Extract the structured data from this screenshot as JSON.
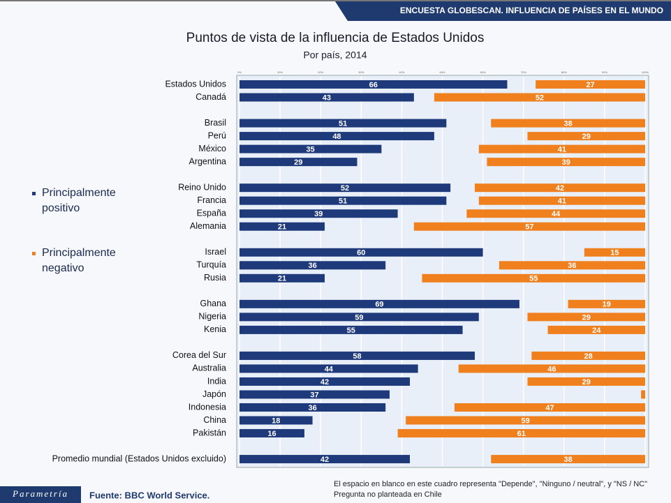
{
  "header": "ENCUESTA GLOBESCAN. INFLUENCIA DE PAÍSES EN EL MUNDO",
  "logo": "Parametría",
  "source": "Fuente: BBC World Service.",
  "notes": [
    "El espacio en blanco en este cuadro representa \"Depende\", \"Ninguno / neutral\", y \"NS / NC\"",
    "Pregunta no planteada en Chile"
  ],
  "chart_data": {
    "type": "diverging-bar",
    "title": "Puntos de vista de la influencia de Estados Unidos",
    "subtitle": "Por país, 2014",
    "categories": [
      "Estados Unidos",
      "Canadá",
      null,
      "Brasil",
      "Perú",
      "México",
      "Argentina",
      null,
      "Reino Unido",
      "Francia",
      "España",
      "Alemania",
      null,
      "Israel",
      "Turquía",
      "Rusia",
      null,
      "Ghana",
      "Nigeria",
      "Kenia",
      null,
      "Corea del Sur",
      "Australia",
      "India",
      "Japón",
      "Indonesia",
      "China",
      "Pakistán",
      null,
      "Promedio mundial (Estados Unidos excluido)"
    ],
    "series": [
      {
        "name": "Principalmente positivo",
        "color": "#1f3a7a",
        "side": "left",
        "values": [
          66,
          43,
          null,
          51,
          48,
          35,
          29,
          null,
          52,
          51,
          39,
          21,
          null,
          60,
          36,
          21,
          null,
          69,
          59,
          55,
          null,
          58,
          44,
          42,
          37,
          36,
          18,
          16,
          null,
          42
        ]
      },
      {
        "name": "Principalmente negativo",
        "color": "#f07f1e",
        "side": "right",
        "values": [
          27,
          52,
          null,
          38,
          29,
          41,
          39,
          null,
          42,
          41,
          44,
          57,
          null,
          15,
          36,
          55,
          null,
          19,
          29,
          24,
          null,
          28,
          46,
          29,
          1,
          47,
          59,
          61,
          null,
          38
        ],
        "value_labels": [
          "27",
          "52",
          null,
          "38",
          "29",
          "41",
          "39",
          null,
          "42",
          "41",
          "44",
          "57",
          null,
          "15",
          "36",
          "55",
          null,
          "19",
          "29",
          "24",
          null,
          "28",
          "46",
          "29",
          null,
          "47",
          "59",
          "61",
          null,
          "38"
        ]
      }
    ],
    "xlim": [
      0,
      100
    ],
    "xticks": [
      {
        "value": 0,
        "label": "0%"
      },
      {
        "value": 10,
        "label": "10%"
      },
      {
        "value": 20,
        "label": "20%"
      },
      {
        "value": 30,
        "label": "30%"
      },
      {
        "value": 40,
        "label": "40%"
      },
      {
        "value": 50,
        "label": "50%"
      },
      {
        "value": 60,
        "label": "60%"
      },
      {
        "value": 70,
        "label": "70%"
      },
      {
        "value": 80,
        "label": "80%"
      },
      {
        "value": 90,
        "label": "90%"
      },
      {
        "value": 100,
        "label": "100%"
      }
    ],
    "grid": true
  }
}
